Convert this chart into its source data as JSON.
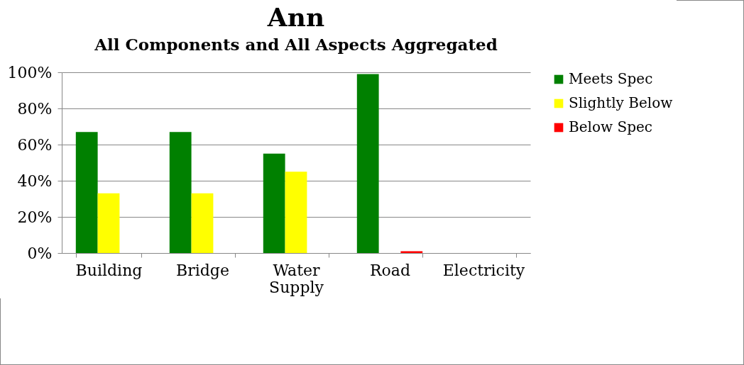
{
  "chart_data": {
    "type": "bar",
    "title": "Ann",
    "subtitle": "All Components and All Aspects Aggregated",
    "categories": [
      "Building",
      "Bridge",
      "Water Supply",
      "Road",
      "Electricity"
    ],
    "series": [
      {
        "name": "Meets Spec",
        "color": "#008000",
        "values": [
          67,
          67,
          55,
          99,
          0
        ]
      },
      {
        "name": "Slightly Below",
        "color": "#ffff00",
        "values": [
          33,
          33,
          45,
          0,
          0
        ]
      },
      {
        "name": "Below Spec",
        "color": "#ff0000",
        "values": [
          0,
          0,
          0,
          1,
          0
        ]
      }
    ],
    "ylim": [
      0,
      100
    ],
    "yticks": [
      {
        "value": 0,
        "label": "0%"
      },
      {
        "value": 20,
        "label": "20%"
      },
      {
        "value": 40,
        "label": "40%"
      },
      {
        "value": 60,
        "label": "60%"
      },
      {
        "value": 80,
        "label": "80%"
      },
      {
        "value": 100,
        "label": "100%"
      }
    ],
    "grid": "y",
    "legend": "right"
  }
}
